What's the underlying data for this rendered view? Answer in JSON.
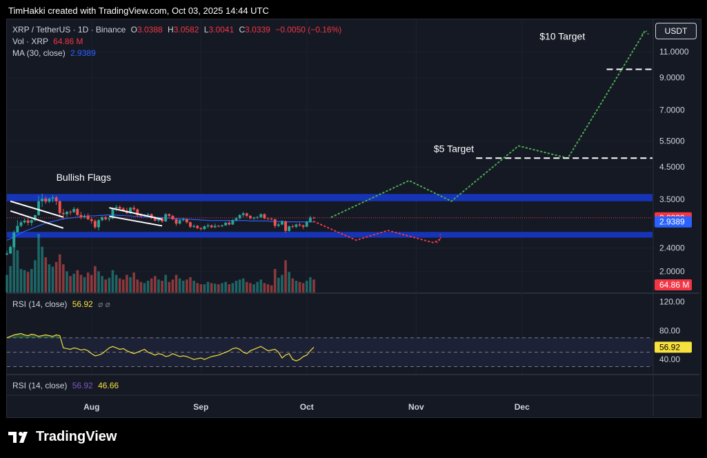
{
  "header": {
    "credit": "TimHakki created with TradingView.com, Oct 03, 2025 14:44 UTC"
  },
  "legend": {
    "symbol": "XRP / TetherUS · 1D · Binance",
    "open_label": "O",
    "open": "3.0388",
    "high_label": "H",
    "high": "3.0582",
    "low_label": "L",
    "low": "3.0041",
    "close_label": "C",
    "close": "3.0339",
    "change": "−0.0050 (−0.16%)",
    "vol_label": "Vol · XRP",
    "vol": "64.86 M",
    "ma_label": "MA (30, close)",
    "ma": "2.9389"
  },
  "currency_button": "USDT",
  "rsi_pane": {
    "label": "RSI (14, close)",
    "value": "56.92",
    "extra": "⌀ ⌀"
  },
  "rsi_pane2": {
    "label": "RSI (14, close)",
    "value1": "56.92",
    "value2": "46.66"
  },
  "brand": {
    "name": "TradingView"
  },
  "colors": {
    "up": "#26a69a",
    "down": "#ef5350",
    "ma": "#2962ff",
    "rsi": "#f7e13e",
    "zone": "#1736c2",
    "projection_up": "#4caf50",
    "projection_down": "#f23645"
  },
  "chart_data": {
    "type": "candlestick",
    "symbol": "XRP / TetherUS",
    "interval": "1D",
    "exchange": "Binance",
    "scale": "log",
    "ylim": [
      1.7,
      14.0
    ],
    "y_ticks": [
      "11.0000",
      "9.0000",
      "7.0000",
      "5.5000",
      "4.5000",
      "3.5000",
      "2.4000",
      "2.0000"
    ],
    "x_ticks": [
      {
        "label": "Aug",
        "date": "2025-08-01"
      },
      {
        "label": "Sep",
        "date": "2025-09-01"
      },
      {
        "label": "Oct",
        "date": "2025-10-01"
      },
      {
        "label": "Nov",
        "date": "2025-11-01"
      },
      {
        "label": "Dec",
        "date": "2025-12-01"
      }
    ],
    "x_start": "2025-07-08",
    "x_end": "2026-01-07",
    "price_labels": [
      {
        "value": 3.0339,
        "text": "3.0339",
        "color": "#f23645"
      },
      {
        "value": 2.9389,
        "text": "2.9389",
        "color": "#2962ff"
      },
      {
        "text": "64.86 M",
        "color": "#f23645"
      }
    ],
    "annotations": [
      {
        "text": "Bullish Flags",
        "date": "2025-07-22",
        "value": 4.05
      },
      {
        "text": "$5 Target",
        "date": "2025-11-06",
        "value": 5.05
      },
      {
        "text": "$10 Target",
        "date": "2025-12-06",
        "value": 12.1
      }
    ],
    "zones": [
      {
        "name": "resistance",
        "from": 3.45,
        "to": 3.65
      },
      {
        "name": "support",
        "from": 2.6,
        "to": 2.72
      }
    ],
    "target_lines": [
      {
        "value": 4.82,
        "from": "2025-11-18",
        "to": "2026-01-07"
      },
      {
        "value": 9.6,
        "from": "2025-12-25",
        "to": "2026-01-07"
      }
    ],
    "projection_bull": [
      {
        "date": "2025-10-08",
        "value": 3.05
      },
      {
        "date": "2025-10-30",
        "value": 4.05
      },
      {
        "date": "2025-11-11",
        "value": 3.45
      },
      {
        "date": "2025-11-30",
        "value": 5.3
      },
      {
        "date": "2025-12-14",
        "value": 4.82
      },
      {
        "date": "2026-01-05",
        "value": 13.0
      }
    ],
    "projection_bear": [
      {
        "date": "2025-10-03",
        "value": 2.95
      },
      {
        "date": "2025-10-15",
        "value": 2.55
      },
      {
        "date": "2025-10-24",
        "value": 2.75
      },
      {
        "date": "2025-11-06",
        "value": 2.5
      },
      {
        "date": "2025-11-08",
        "value": 2.58
      }
    ],
    "flags": [
      {
        "upper": [
          [
            "2025-07-09",
            3.45
          ],
          [
            "2025-07-24",
            3.05
          ]
        ],
        "lower": [
          [
            "2025-07-09",
            3.2
          ],
          [
            "2025-07-24",
            2.8
          ]
        ]
      },
      {
        "upper": [
          [
            "2025-08-06",
            3.28
          ],
          [
            "2025-08-21",
            3.0
          ]
        ],
        "lower": [
          [
            "2025-08-06",
            3.07
          ],
          [
            "2025-08-21",
            2.85
          ]
        ]
      }
    ],
    "candles": [
      {
        "date": "2025-07-08",
        "o": 2.28,
        "h": 2.35,
        "l": 2.27,
        "c": 2.3
      },
      {
        "date": "2025-07-09",
        "o": 2.3,
        "h": 2.45,
        "l": 2.29,
        "c": 2.42
      },
      {
        "date": "2025-07-10",
        "o": 2.42,
        "h": 2.75,
        "l": 2.4,
        "c": 2.71
      },
      {
        "date": "2025-07-11",
        "o": 2.71,
        "h": 2.98,
        "l": 2.7,
        "c": 2.85
      },
      {
        "date": "2025-07-12",
        "o": 2.85,
        "h": 2.97,
        "l": 2.82,
        "c": 2.93
      },
      {
        "date": "2025-07-13",
        "o": 2.93,
        "h": 3.02,
        "l": 2.9,
        "c": 2.97
      },
      {
        "date": "2025-07-14",
        "o": 2.97,
        "h": 3.03,
        "l": 2.86,
        "c": 2.92
      },
      {
        "date": "2025-07-15",
        "o": 2.92,
        "h": 3.0,
        "l": 2.85,
        "c": 2.98
      },
      {
        "date": "2025-07-16",
        "o": 2.98,
        "h": 3.1,
        "l": 2.95,
        "c": 3.1
      },
      {
        "date": "2025-07-17",
        "o": 3.1,
        "h": 3.6,
        "l": 3.08,
        "c": 3.45
      },
      {
        "date": "2025-07-18",
        "o": 3.45,
        "h": 3.66,
        "l": 3.3,
        "c": 3.52
      },
      {
        "date": "2025-07-19",
        "o": 3.52,
        "h": 3.58,
        "l": 3.38,
        "c": 3.44
      },
      {
        "date": "2025-07-20",
        "o": 3.44,
        "h": 3.55,
        "l": 3.4,
        "c": 3.52
      },
      {
        "date": "2025-07-21",
        "o": 3.52,
        "h": 3.62,
        "l": 3.42,
        "c": 3.55
      },
      {
        "date": "2025-07-22",
        "o": 3.55,
        "h": 3.6,
        "l": 3.35,
        "c": 3.45
      },
      {
        "date": "2025-07-23",
        "o": 3.45,
        "h": 3.47,
        "l": 3.05,
        "c": 3.15
      },
      {
        "date": "2025-07-24",
        "o": 3.15,
        "h": 3.25,
        "l": 3.0,
        "c": 3.12
      },
      {
        "date": "2025-07-25",
        "o": 3.12,
        "h": 3.2,
        "l": 3.05,
        "c": 3.18
      },
      {
        "date": "2025-07-26",
        "o": 3.18,
        "h": 3.22,
        "l": 3.1,
        "c": 3.17
      },
      {
        "date": "2025-07-27",
        "o": 3.17,
        "h": 3.3,
        "l": 3.15,
        "c": 3.25
      },
      {
        "date": "2025-07-28",
        "o": 3.25,
        "h": 3.28,
        "l": 3.08,
        "c": 3.1
      },
      {
        "date": "2025-07-29",
        "o": 3.1,
        "h": 3.18,
        "l": 3.0,
        "c": 3.05
      },
      {
        "date": "2025-07-30",
        "o": 3.05,
        "h": 3.12,
        "l": 3.02,
        "c": 3.08
      },
      {
        "date": "2025-07-31",
        "o": 3.08,
        "h": 3.14,
        "l": 2.98,
        "c": 3.0
      },
      {
        "date": "2025-08-01",
        "o": 3.0,
        "h": 3.05,
        "l": 2.9,
        "c": 2.96
      },
      {
        "date": "2025-08-02",
        "o": 2.96,
        "h": 3.0,
        "l": 2.78,
        "c": 2.82
      },
      {
        "date": "2025-08-03",
        "o": 2.82,
        "h": 3.0,
        "l": 2.75,
        "c": 2.98
      },
      {
        "date": "2025-08-04",
        "o": 2.98,
        "h": 3.07,
        "l": 2.95,
        "c": 3.05
      },
      {
        "date": "2025-08-05",
        "o": 3.05,
        "h": 3.08,
        "l": 2.97,
        "c": 3.0
      },
      {
        "date": "2025-08-06",
        "o": 3.0,
        "h": 3.05,
        "l": 2.95,
        "c": 3.02
      },
      {
        "date": "2025-08-07",
        "o": 3.02,
        "h": 3.28,
        "l": 3.0,
        "c": 3.27
      },
      {
        "date": "2025-08-08",
        "o": 3.27,
        "h": 3.35,
        "l": 3.2,
        "c": 3.3
      },
      {
        "date": "2025-08-09",
        "o": 3.3,
        "h": 3.34,
        "l": 3.22,
        "c": 3.26
      },
      {
        "date": "2025-08-10",
        "o": 3.26,
        "h": 3.3,
        "l": 3.18,
        "c": 3.2
      },
      {
        "date": "2025-08-11",
        "o": 3.2,
        "h": 3.28,
        "l": 3.12,
        "c": 3.15
      },
      {
        "date": "2025-08-12",
        "o": 3.15,
        "h": 3.3,
        "l": 3.12,
        "c": 3.28
      },
      {
        "date": "2025-08-13",
        "o": 3.28,
        "h": 3.34,
        "l": 3.2,
        "c": 3.24
      },
      {
        "date": "2025-08-14",
        "o": 3.24,
        "h": 3.26,
        "l": 3.05,
        "c": 3.1
      },
      {
        "date": "2025-08-15",
        "o": 3.1,
        "h": 3.14,
        "l": 3.04,
        "c": 3.08
      },
      {
        "date": "2025-08-16",
        "o": 3.08,
        "h": 3.12,
        "l": 3.05,
        "c": 3.1
      },
      {
        "date": "2025-08-17",
        "o": 3.1,
        "h": 3.15,
        "l": 3.05,
        "c": 3.12
      },
      {
        "date": "2025-08-18",
        "o": 3.12,
        "h": 3.14,
        "l": 3.0,
        "c": 3.03
      },
      {
        "date": "2025-08-19",
        "o": 3.03,
        "h": 3.07,
        "l": 2.95,
        "c": 2.97
      },
      {
        "date": "2025-08-20",
        "o": 2.97,
        "h": 3.05,
        "l": 2.93,
        "c": 3.02
      },
      {
        "date": "2025-08-21",
        "o": 3.02,
        "h": 3.04,
        "l": 2.92,
        "c": 2.95
      },
      {
        "date": "2025-08-22",
        "o": 2.95,
        "h": 3.15,
        "l": 2.94,
        "c": 3.12
      },
      {
        "date": "2025-08-23",
        "o": 3.12,
        "h": 3.14,
        "l": 3.05,
        "c": 3.08
      },
      {
        "date": "2025-08-24",
        "o": 3.08,
        "h": 3.1,
        "l": 2.98,
        "c": 3.0
      },
      {
        "date": "2025-08-25",
        "o": 3.0,
        "h": 3.02,
        "l": 2.85,
        "c": 2.9
      },
      {
        "date": "2025-08-26",
        "o": 2.9,
        "h": 3.0,
        "l": 2.88,
        "c": 2.98
      },
      {
        "date": "2025-08-27",
        "o": 2.98,
        "h": 3.04,
        "l": 2.95,
        "c": 3.0
      },
      {
        "date": "2025-08-28",
        "o": 3.0,
        "h": 3.02,
        "l": 2.9,
        "c": 2.93
      },
      {
        "date": "2025-08-29",
        "o": 2.93,
        "h": 2.95,
        "l": 2.8,
        "c": 2.83
      },
      {
        "date": "2025-08-30",
        "o": 2.83,
        "h": 2.88,
        "l": 2.8,
        "c": 2.85
      },
      {
        "date": "2025-08-31",
        "o": 2.85,
        "h": 2.87,
        "l": 2.78,
        "c": 2.8
      },
      {
        "date": "2025-09-01",
        "o": 2.8,
        "h": 2.82,
        "l": 2.75,
        "c": 2.78
      },
      {
        "date": "2025-09-02",
        "o": 2.78,
        "h": 2.86,
        "l": 2.76,
        "c": 2.84
      },
      {
        "date": "2025-09-03",
        "o": 2.84,
        "h": 2.9,
        "l": 2.8,
        "c": 2.86
      },
      {
        "date": "2025-09-04",
        "o": 2.86,
        "h": 2.88,
        "l": 2.8,
        "c": 2.82
      },
      {
        "date": "2025-09-05",
        "o": 2.82,
        "h": 2.9,
        "l": 2.8,
        "c": 2.85
      },
      {
        "date": "2025-09-06",
        "o": 2.85,
        "h": 2.87,
        "l": 2.82,
        "c": 2.84
      },
      {
        "date": "2025-09-07",
        "o": 2.84,
        "h": 2.88,
        "l": 2.82,
        "c": 2.86
      },
      {
        "date": "2025-09-08",
        "o": 2.86,
        "h": 2.94,
        "l": 2.85,
        "c": 2.92
      },
      {
        "date": "2025-09-09",
        "o": 2.92,
        "h": 2.96,
        "l": 2.86,
        "c": 2.88
      },
      {
        "date": "2025-09-10",
        "o": 2.88,
        "h": 3.0,
        "l": 2.87,
        "c": 2.98
      },
      {
        "date": "2025-09-11",
        "o": 2.98,
        "h": 3.05,
        "l": 2.95,
        "c": 3.02
      },
      {
        "date": "2025-09-12",
        "o": 3.02,
        "h": 3.12,
        "l": 3.0,
        "c": 3.1
      },
      {
        "date": "2025-09-13",
        "o": 3.1,
        "h": 3.18,
        "l": 3.05,
        "c": 3.14
      },
      {
        "date": "2025-09-14",
        "o": 3.14,
        "h": 3.16,
        "l": 3.05,
        "c": 3.08
      },
      {
        "date": "2025-09-15",
        "o": 3.08,
        "h": 3.1,
        "l": 3.0,
        "c": 3.02
      },
      {
        "date": "2025-09-16",
        "o": 3.02,
        "h": 3.06,
        "l": 2.98,
        "c": 3.04
      },
      {
        "date": "2025-09-17",
        "o": 3.04,
        "h": 3.08,
        "l": 3.0,
        "c": 3.05
      },
      {
        "date": "2025-09-18",
        "o": 3.05,
        "h": 3.14,
        "l": 3.03,
        "c": 3.12
      },
      {
        "date": "2025-09-19",
        "o": 3.12,
        "h": 3.14,
        "l": 3.0,
        "c": 3.02
      },
      {
        "date": "2025-09-20",
        "o": 3.02,
        "h": 3.05,
        "l": 2.99,
        "c": 3.01
      },
      {
        "date": "2025-09-21",
        "o": 3.01,
        "h": 3.04,
        "l": 2.98,
        "c": 3.0
      },
      {
        "date": "2025-09-22",
        "o": 3.0,
        "h": 3.01,
        "l": 2.8,
        "c": 2.85
      },
      {
        "date": "2025-09-23",
        "o": 2.85,
        "h": 2.92,
        "l": 2.82,
        "c": 2.88
      },
      {
        "date": "2025-09-24",
        "o": 2.88,
        "h": 2.98,
        "l": 2.86,
        "c": 2.95
      },
      {
        "date": "2025-09-25",
        "o": 2.95,
        "h": 2.97,
        "l": 2.7,
        "c": 2.74
      },
      {
        "date": "2025-09-26",
        "o": 2.74,
        "h": 2.86,
        "l": 2.72,
        "c": 2.84
      },
      {
        "date": "2025-09-27",
        "o": 2.84,
        "h": 2.88,
        "l": 2.8,
        "c": 2.83
      },
      {
        "date": "2025-09-28",
        "o": 2.83,
        "h": 2.9,
        "l": 2.8,
        "c": 2.88
      },
      {
        "date": "2025-09-29",
        "o": 2.88,
        "h": 2.92,
        "l": 2.83,
        "c": 2.86
      },
      {
        "date": "2025-09-30",
        "o": 2.86,
        "h": 2.88,
        "l": 2.78,
        "c": 2.83
      },
      {
        "date": "2025-10-01",
        "o": 2.83,
        "h": 2.96,
        "l": 2.82,
        "c": 2.94
      },
      {
        "date": "2025-10-02",
        "o": 2.94,
        "h": 3.08,
        "l": 2.92,
        "c": 3.04
      },
      {
        "date": "2025-10-03",
        "o": 3.0388,
        "h": 3.0582,
        "l": 3.0041,
        "c": 3.0339
      }
    ],
    "volume_scale_max": 100,
    "volume": [
      30,
      45,
      95,
      72,
      40,
      38,
      35,
      40,
      55,
      100,
      78,
      60,
      48,
      44,
      52,
      65,
      48,
      36,
      28,
      32,
      38,
      30,
      26,
      34,
      30,
      45,
      36,
      28,
      22,
      25,
      38,
      30,
      24,
      22,
      30,
      26,
      34,
      22,
      18,
      16,
      20,
      24,
      28,
      22,
      20,
      30,
      18,
      22,
      30,
      24,
      20,
      22,
      26,
      20,
      16,
      14,
      14,
      18,
      16,
      15,
      14,
      16,
      18,
      14,
      16,
      20,
      22,
      24,
      18,
      16,
      14,
      18,
      22,
      16,
      14,
      12,
      40,
      25,
      30,
      55,
      35,
      24,
      20,
      18,
      16,
      20,
      26,
      22
    ],
    "ma_30": [
      2.55,
      2.58,
      2.62,
      2.66,
      2.7,
      2.73,
      2.76,
      2.79,
      2.82,
      2.85,
      2.88,
      2.91,
      2.93,
      2.95,
      2.97,
      2.99,
      3.01,
      3.02,
      3.03,
      3.04,
      3.05,
      3.06,
      3.07,
      3.08,
      3.08,
      3.08,
      3.09,
      3.09,
      3.1,
      3.1,
      3.1,
      3.1,
      3.09,
      3.09,
      3.08,
      3.08,
      3.07,
      3.07,
      3.06,
      3.06,
      3.05,
      3.05,
      3.04,
      3.04,
      3.04,
      3.03,
      3.03,
      3.02,
      3.02,
      3.01,
      3.01,
      3.0,
      3.0,
      2.99,
      2.99,
      2.98,
      2.98,
      2.97,
      2.97,
      2.97,
      2.97,
      2.97,
      2.97,
      2.97,
      2.97,
      2.97,
      2.97,
      2.97,
      2.97,
      2.96,
      2.96,
      2.96,
      2.96,
      2.96,
      2.96,
      2.95,
      2.95,
      2.95,
      2.95,
      2.94,
      2.94,
      2.94,
      2.94,
      2.94,
      2.94,
      2.94,
      2.94,
      2.9389
    ],
    "rsi": {
      "axis_ticks": [
        "120.00",
        "80.00",
        "40.00"
      ],
      "ylim": [
        20,
        130
      ],
      "band": [
        30,
        70
      ],
      "current": 56.92,
      "values": [
        70,
        72,
        74,
        75,
        76,
        74,
        73,
        75,
        74,
        72,
        73,
        74,
        73,
        72,
        74,
        73,
        56,
        55,
        54,
        56,
        55,
        53,
        54,
        52,
        48,
        45,
        46,
        48,
        52,
        56,
        58,
        56,
        54,
        55,
        52,
        50,
        48,
        50,
        52,
        54,
        50,
        48,
        46,
        48,
        47,
        44,
        45,
        48,
        46,
        44,
        45,
        44,
        42,
        40,
        41,
        42,
        40,
        42,
        44,
        45,
        46,
        48,
        50,
        52,
        55,
        56,
        54,
        50,
        48,
        52,
        54,
        56,
        58,
        55,
        52,
        53,
        54,
        50,
        42,
        46,
        48,
        40,
        38,
        40,
        44,
        46,
        52,
        56.92
      ]
    }
  }
}
